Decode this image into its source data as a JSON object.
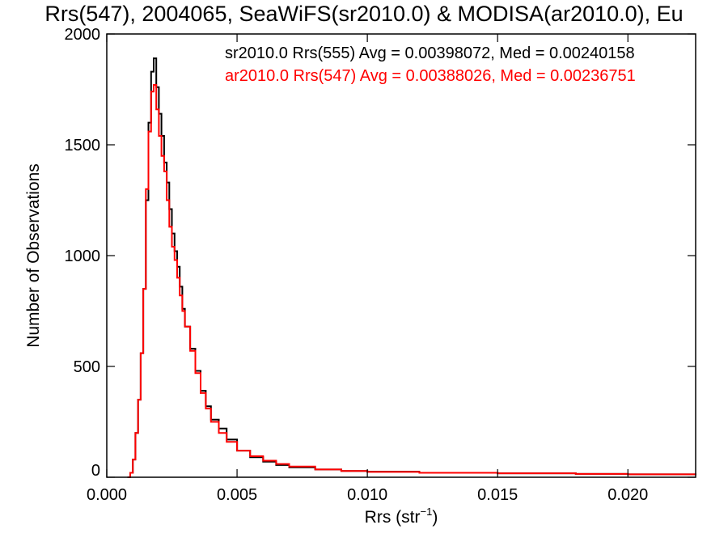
{
  "chart_data": {
    "type": "line",
    "title": "Rrs(547), 2004065, SeaWiFS(sr2010.0) & MODISA(ar2010.0), Eu",
    "xlabel": "Rrs (str",
    "xlabel_sup": "−1",
    "xlabel_end": ")",
    "ylabel": "Number of Observations",
    "xlim": [
      0.0,
      0.0226
    ],
    "ylim": [
      0,
      2000
    ],
    "x_ticks": [
      "0.000",
      "0.005",
      "0.010",
      "0.015",
      "0.020"
    ],
    "y_ticks": [
      "0",
      "500",
      "1000",
      "1500",
      "2000"
    ],
    "grid": false,
    "legend_position": "top-right",
    "series": [
      {
        "name": "sr2010.0 Rrs(555) Avg = 0.00398072, Med = 0.00240158",
        "color": "#000000",
        "points": [
          [
            0.0008,
            0
          ],
          [
            0.0009,
            20
          ],
          [
            0.001,
            80
          ],
          [
            0.0011,
            200
          ],
          [
            0.0012,
            350
          ],
          [
            0.0013,
            560
          ],
          [
            0.0014,
            850
          ],
          [
            0.0015,
            1250
          ],
          [
            0.0016,
            1600
          ],
          [
            0.0017,
            1830
          ],
          [
            0.0018,
            1890
          ],
          [
            0.0019,
            1760
          ],
          [
            0.002,
            1640
          ],
          [
            0.0021,
            1540
          ],
          [
            0.0022,
            1420
          ],
          [
            0.0023,
            1330
          ],
          [
            0.0024,
            1210
          ],
          [
            0.0025,
            1100
          ],
          [
            0.0026,
            1020
          ],
          [
            0.0027,
            950
          ],
          [
            0.0028,
            860
          ],
          [
            0.0029,
            760
          ],
          [
            0.003,
            680
          ],
          [
            0.0032,
            580
          ],
          [
            0.0034,
            480
          ],
          [
            0.0036,
            390
          ],
          [
            0.0038,
            320
          ],
          [
            0.004,
            260
          ],
          [
            0.0043,
            220
          ],
          [
            0.0046,
            170
          ],
          [
            0.005,
            120
          ],
          [
            0.0055,
            90
          ],
          [
            0.006,
            70
          ],
          [
            0.0065,
            55
          ],
          [
            0.007,
            45
          ],
          [
            0.008,
            35
          ],
          [
            0.009,
            28
          ],
          [
            0.01,
            25
          ],
          [
            0.012,
            20
          ],
          [
            0.015,
            18
          ],
          [
            0.018,
            15
          ],
          [
            0.02,
            13
          ],
          [
            0.0226,
            10
          ]
        ]
      },
      {
        "name": "ar2010.0 Rrs(547) Avg = 0.00388026, Med = 0.00236751",
        "color": "#ff0000",
        "points": [
          [
            0.0008,
            0
          ],
          [
            0.0009,
            20
          ],
          [
            0.001,
            80
          ],
          [
            0.0011,
            200
          ],
          [
            0.0012,
            350
          ],
          [
            0.0013,
            560
          ],
          [
            0.0014,
            850
          ],
          [
            0.0015,
            1300
          ],
          [
            0.0016,
            1560
          ],
          [
            0.0017,
            1740
          ],
          [
            0.0018,
            1770
          ],
          [
            0.0019,
            1660
          ],
          [
            0.002,
            1540
          ],
          [
            0.0021,
            1450
          ],
          [
            0.0022,
            1380
          ],
          [
            0.0023,
            1250
          ],
          [
            0.0024,
            1130
          ],
          [
            0.0025,
            1040
          ],
          [
            0.0026,
            980
          ],
          [
            0.0027,
            900
          ],
          [
            0.0028,
            820
          ],
          [
            0.0029,
            750
          ],
          [
            0.003,
            680
          ],
          [
            0.0032,
            570
          ],
          [
            0.0034,
            470
          ],
          [
            0.0036,
            380
          ],
          [
            0.0038,
            310
          ],
          [
            0.004,
            250
          ],
          [
            0.0043,
            200
          ],
          [
            0.0046,
            160
          ],
          [
            0.005,
            120
          ],
          [
            0.0055,
            95
          ],
          [
            0.006,
            75
          ],
          [
            0.0065,
            60
          ],
          [
            0.007,
            48
          ],
          [
            0.008,
            35
          ],
          [
            0.009,
            28
          ],
          [
            0.01,
            24
          ],
          [
            0.012,
            20
          ],
          [
            0.015,
            18
          ],
          [
            0.018,
            15
          ],
          [
            0.02,
            13
          ],
          [
            0.0226,
            10
          ]
        ]
      }
    ]
  }
}
